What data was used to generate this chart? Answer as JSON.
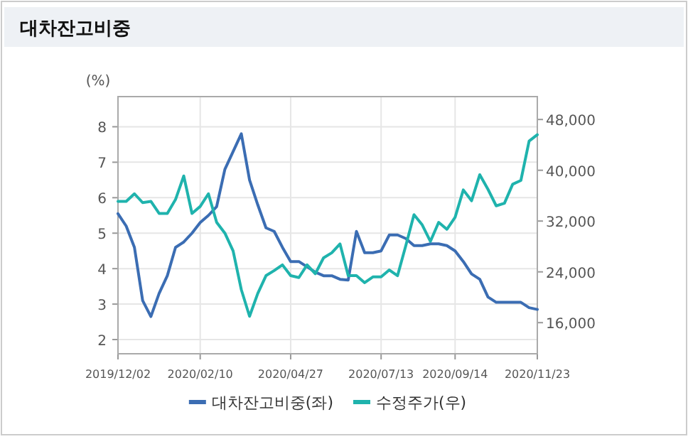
{
  "chart_data": {
    "type": "line",
    "title": "대차잔고비중",
    "ylabel": "(%)",
    "x": [
      "2019-12-02",
      "2019-12-09",
      "2019-12-16",
      "2019-12-23",
      "2019-12-30",
      "2020-01-06",
      "2020-01-13",
      "2020-01-20",
      "2020-01-27",
      "2020-02-03",
      "2020-02-10",
      "2020-02-17",
      "2020-02-24",
      "2020-03-02",
      "2020-03-09",
      "2020-03-16",
      "2020-03-23",
      "2020-03-30",
      "2020-04-06",
      "2020-04-13",
      "2020-04-20",
      "2020-04-27",
      "2020-05-04",
      "2020-05-11",
      "2020-05-18",
      "2020-05-25",
      "2020-06-01",
      "2020-06-08",
      "2020-06-15",
      "2020-06-22",
      "2020-06-29",
      "2020-07-06",
      "2020-07-13",
      "2020-07-20",
      "2020-07-27",
      "2020-08-03",
      "2020-08-10",
      "2020-08-17",
      "2020-08-24",
      "2020-08-31",
      "2020-09-07",
      "2020-09-14",
      "2020-09-21",
      "2020-09-28",
      "2020-10-05",
      "2020-10-12",
      "2020-10-19",
      "2020-10-26",
      "2020-11-02",
      "2020-11-09",
      "2020-11-16",
      "2020-11-23"
    ],
    "series": [
      {
        "name": "대차잔고비중(좌)",
        "color": "#3b6db3",
        "values": [
          5.55,
          5.2,
          4.6,
          3.1,
          2.65,
          3.3,
          3.8,
          4.6,
          4.75,
          5.0,
          5.3,
          5.5,
          5.75,
          6.8,
          7.3,
          7.8,
          6.5,
          5.8,
          5.15,
          5.05,
          4.6,
          4.2,
          4.2,
          4.05,
          3.9,
          3.8,
          3.8,
          3.7,
          3.68,
          5.05,
          4.45,
          4.45,
          4.5,
          4.95,
          4.95,
          4.85,
          4.65,
          4.65,
          4.7,
          4.7,
          4.65,
          4.5,
          4.2,
          3.85,
          3.7,
          3.2,
          3.05,
          3.05,
          3.05,
          3.05,
          2.9,
          2.85
        ]
      },
      {
        "name": "수정주가(우)",
        "color": "#1fb3ad",
        "axis": "y2",
        "values": [
          35100,
          35100,
          36300,
          34900,
          35100,
          33200,
          33200,
          35400,
          39100,
          33200,
          34300,
          36300,
          31800,
          30100,
          27300,
          21200,
          17000,
          20600,
          23400,
          24200,
          25100,
          23400,
          23100,
          25100,
          23700,
          26200,
          27000,
          28400,
          23400,
          23400,
          22300,
          23200,
          23200,
          24300,
          23400,
          28100,
          33000,
          31400,
          28800,
          31800,
          30700,
          32600,
          36900,
          35200,
          39300,
          37000,
          34400,
          34800,
          37800,
          38400,
          44600,
          45600
        ]
      }
    ],
    "xlim": [
      "2019-12-02",
      "2020-11-23"
    ],
    "xticks": [
      {
        "value": "2019-12-02",
        "label": "2019/12/02"
      },
      {
        "value": "2020-02-10",
        "label": "2020/02/10"
      },
      {
        "value": "2020-04-27",
        "label": "2020/04/27"
      },
      {
        "value": "2020-07-13",
        "label": "2020/07/13"
      },
      {
        "value": "2020-09-14",
        "label": "2020/09/14"
      },
      {
        "value": "2020-11-23",
        "label": "2020/11/23"
      }
    ],
    "ylim": [
      1.6,
      8.85
    ],
    "yticks": [
      2,
      3,
      4,
      5,
      6,
      7,
      8
    ],
    "y2lim": [
      11100,
      51600
    ],
    "y2ticks": [
      {
        "value": 16000,
        "label": "16,000"
      },
      {
        "value": 24000,
        "label": "24,000"
      },
      {
        "value": 32000,
        "label": "32,000"
      },
      {
        "value": 40000,
        "label": "40,000"
      },
      {
        "value": 48000,
        "label": "48,000"
      }
    ],
    "grid": true,
    "legend": "bottom"
  }
}
